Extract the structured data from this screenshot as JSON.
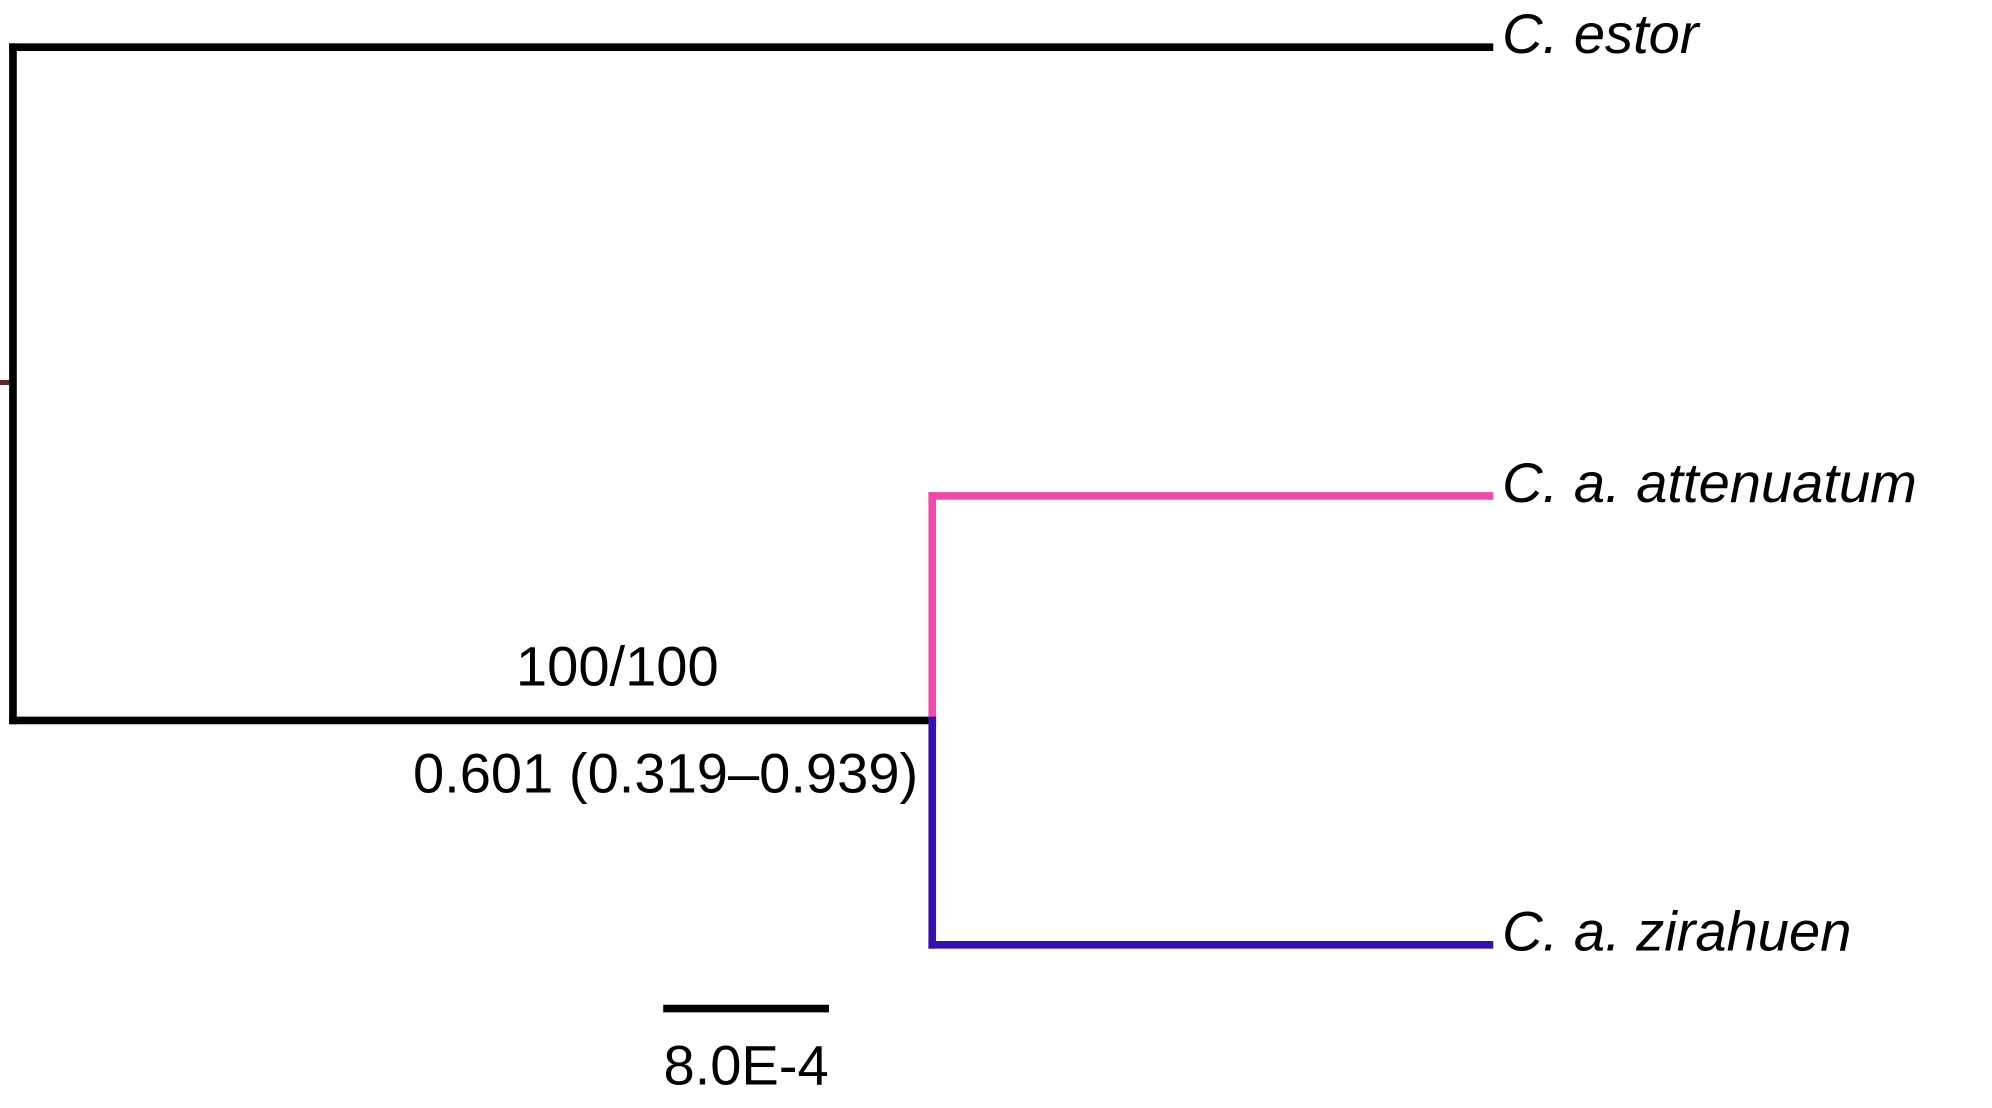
{
  "tree": {
    "taxa": [
      "C. estor",
      "C. a. attenuatum",
      "C. a. zirahuen"
    ],
    "node_label": {
      "support": "100/100",
      "age": "0.601 (0.319–0.939)"
    }
  },
  "scale_bar": {
    "label": "8.0E-4"
  }
}
